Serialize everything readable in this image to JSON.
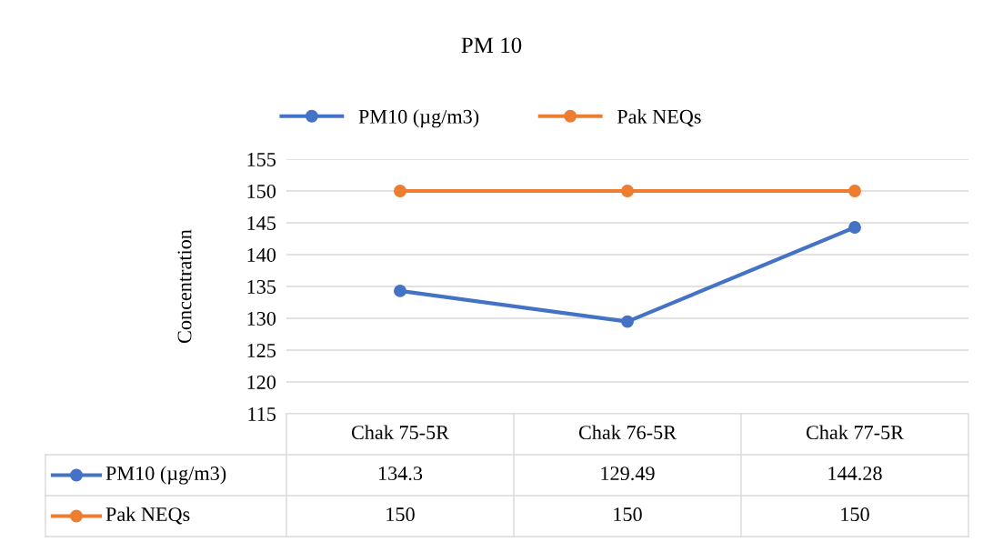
{
  "chart_data": {
    "type": "line",
    "title": "PM 10",
    "ylabel": "Concentration",
    "categories": [
      "Chak 75-5R",
      "Chak 76-5R",
      "Chak 77-5R"
    ],
    "series": [
      {
        "name": "PM10 (µg/m3)",
        "color": "#4472c4",
        "values": [
          134.3,
          129.49,
          144.28
        ]
      },
      {
        "name": "Pak NEQs",
        "color": "#ed7d31",
        "values": [
          150,
          150,
          150
        ]
      }
    ],
    "ylim": [
      115,
      155
    ],
    "yticks": [
      115,
      120,
      125,
      130,
      135,
      140,
      145,
      150,
      155
    ],
    "grid": "y",
    "legend": "top",
    "marker": "circle",
    "line_style": "solid",
    "data_labels": true
  }
}
